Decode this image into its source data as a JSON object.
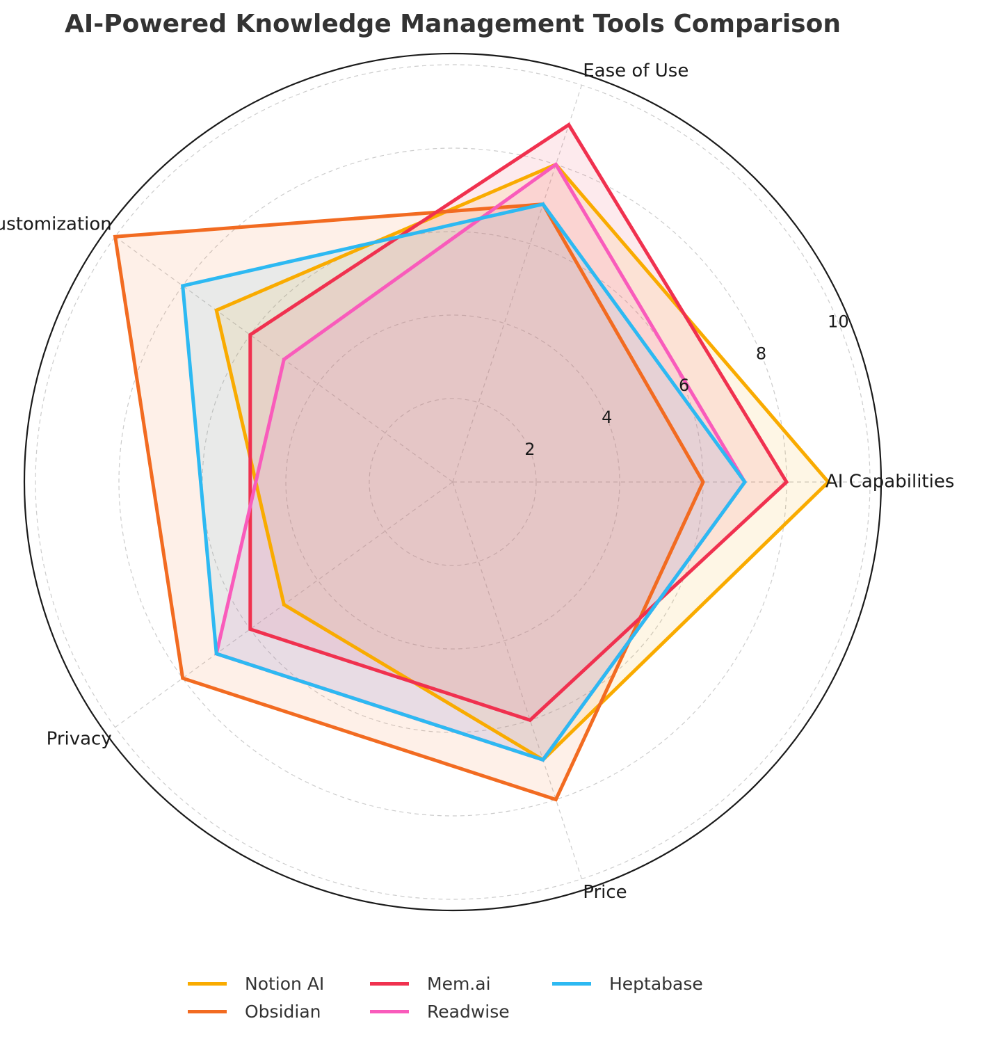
{
  "chart_data": {
    "type": "radar",
    "title": "AI-Powered Knowledge Management Tools Comparison",
    "axes": [
      "AI Capabilities",
      "Ease of Use",
      "Customization",
      "Privacy",
      "Price"
    ],
    "rlim": [
      0,
      10
    ],
    "radial_ticks": [
      "2",
      "4",
      "6",
      "8",
      "10"
    ],
    "grid": true,
    "legend_position": "bottom",
    "series": [
      {
        "name": "Notion AI",
        "color": "#F9AB00",
        "values": [
          9,
          8,
          7,
          5,
          7
        ]
      },
      {
        "name": "Obsidian",
        "color": "#F26B21",
        "values": [
          6,
          7,
          10,
          8,
          8
        ]
      },
      {
        "name": "Mem.ai",
        "color": "#F0314F",
        "values": [
          8,
          9,
          6,
          6,
          6
        ]
      },
      {
        "name": "Readwise",
        "color": "#F95BBB",
        "values": [
          7,
          8,
          5,
          7,
          7
        ]
      },
      {
        "name": "Heptabase",
        "color": "#2DB9F2",
        "values": [
          7,
          7,
          8,
          7,
          7
        ]
      }
    ]
  }
}
